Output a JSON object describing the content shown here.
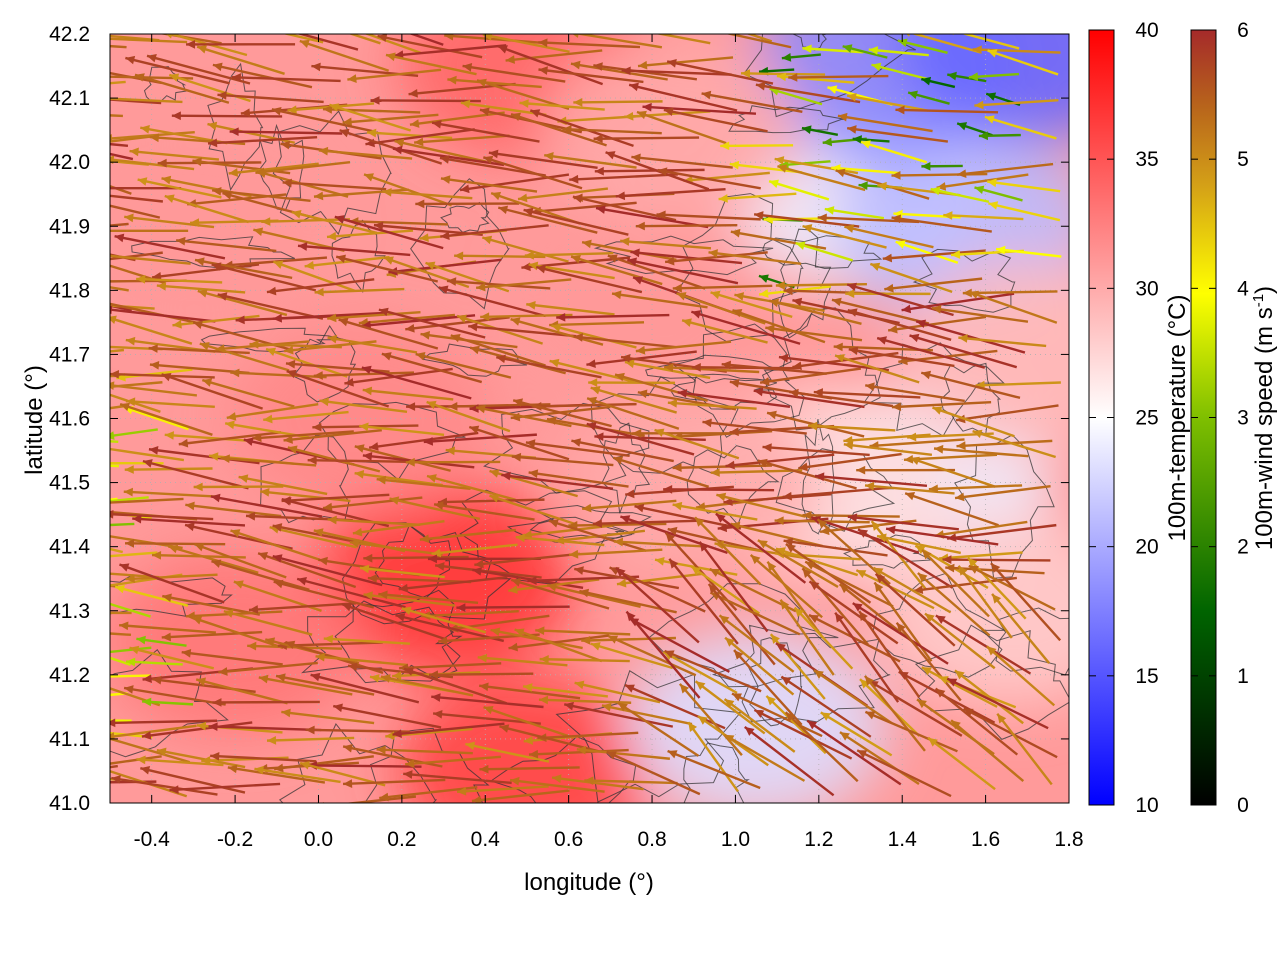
{
  "chart_data": {
    "type": "heatmap",
    "title": "",
    "xlabel": "longitude (°)",
    "ylabel": "latitude (°)",
    "xlim": [
      -0.5,
      1.8
    ],
    "ylim": [
      41.0,
      42.2
    ],
    "xticks": [
      "-0.4",
      "-0.2",
      "0.0",
      "0.2",
      "0.4",
      "0.6",
      "0.8",
      "1.0",
      "1.2",
      "1.4",
      "1.6",
      "1.8"
    ],
    "xtick_values": [
      -0.4,
      -0.2,
      0.0,
      0.2,
      0.4,
      0.6,
      0.8,
      1.0,
      1.2,
      1.4,
      1.6,
      1.8
    ],
    "yticks": [
      "41.0",
      "41.1",
      "41.2",
      "41.3",
      "41.4",
      "41.5",
      "41.6",
      "41.7",
      "41.8",
      "41.9",
      "42.0",
      "42.1",
      "42.2"
    ],
    "ytick_values": [
      41.0,
      41.1,
      41.2,
      41.3,
      41.4,
      41.5,
      41.6,
      41.7,
      41.8,
      41.9,
      42.0,
      42.1,
      42.2
    ],
    "grid": true,
    "temperature_colorbar": {
      "label": "100m-temperature (°C)",
      "range": [
        10,
        40
      ],
      "ticks": [
        "10",
        "15",
        "20",
        "25",
        "30",
        "35",
        "40"
      ],
      "tick_values": [
        10,
        15,
        20,
        25,
        30,
        35,
        40
      ],
      "colors": [
        "#0000ff",
        "#ffffff",
        "#ff0000"
      ]
    },
    "wind_colorbar": {
      "label": "100m-wind speed (m s",
      "label_sup": "-1",
      "label_end": ")",
      "range": [
        0,
        6
      ],
      "ticks": [
        "0",
        "1",
        "2",
        "3",
        "4",
        "5",
        "6"
      ],
      "tick_values": [
        0,
        1,
        2,
        3,
        4,
        5,
        6
      ],
      "colors": [
        "#000000",
        "#006400",
        "#7fbf00",
        "#ffff00",
        "#d4a017",
        "#b8651b",
        "#a52a2a"
      ]
    },
    "temperature_field": {
      "description_regions": [
        {
          "lon": 0.3,
          "lat": 41.35,
          "temp": 37
        },
        {
          "lon": 0.5,
          "lat": 41.05,
          "temp": 36
        },
        {
          "lon": 0.1,
          "lat": 41.6,
          "temp": 32
        },
        {
          "lon": -0.3,
          "lat": 41.9,
          "temp": 31
        },
        {
          "lon": 0.5,
          "lat": 42.15,
          "temp": 34
        },
        {
          "lon": 0.8,
          "lat": 41.8,
          "temp": 31
        },
        {
          "lon": 1.3,
          "lat": 41.95,
          "temp": 24
        },
        {
          "lon": 1.55,
          "lat": 41.9,
          "temp": 21
        },
        {
          "lon": 1.35,
          "lat": 42.15,
          "temp": 18
        },
        {
          "lon": 1.7,
          "lat": 42.18,
          "temp": 16
        },
        {
          "lon": 1.05,
          "lat": 41.12,
          "temp": 23
        },
        {
          "lon": 1.45,
          "lat": 41.5,
          "temp": 24
        },
        {
          "lon": 1.65,
          "lat": 41.3,
          "temp": 28
        },
        {
          "lon": 1.2,
          "lat": 41.5,
          "temp": 27
        },
        {
          "lon": 0.9,
          "lat": 41.5,
          "temp": 30
        },
        {
          "lon": -0.2,
          "lat": 41.25,
          "temp": 33
        },
        {
          "lon": 1.7,
          "lat": 41.7,
          "temp": 29
        },
        {
          "lon": 0.85,
          "lat": 42.05,
          "temp": 30
        }
      ]
    },
    "wind_field": {
      "dominant_direction": "easterly (flow toward west)",
      "dominant_speed": 6
    }
  }
}
